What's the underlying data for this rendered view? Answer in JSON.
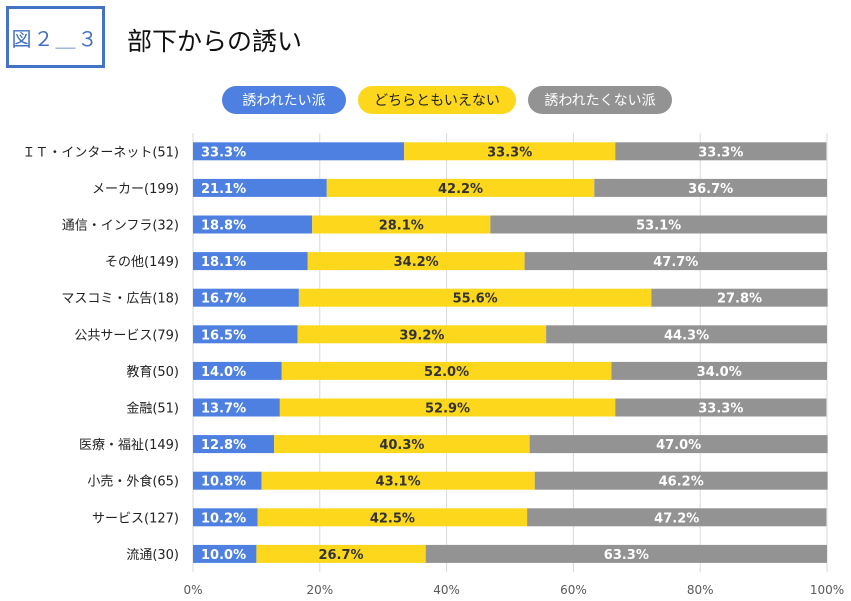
{
  "header": {
    "figure_label": "図２＿３",
    "title": "部下からの誘い"
  },
  "colors": {
    "blue": "#4d80e0",
    "yellow": "#fcd71c",
    "gray": "#939393",
    "figure_border": "#4472c4"
  },
  "chart_data": {
    "type": "bar",
    "orientation": "horizontal",
    "stacked": true,
    "normalized": true,
    "title": "部下からの誘い",
    "legend_position": "top",
    "xlim": [
      0,
      100
    ],
    "grid": true,
    "x_ticks": [
      "0%",
      "20%",
      "40%",
      "60%",
      "80%",
      "100%"
    ],
    "categories": [
      "ＩＴ・インターネット(51)",
      "メーカー(199)",
      "通信・インフラ(32)",
      "その他(149)",
      "マスコミ・広告(18)",
      "公共サービス(79)",
      "教育(50)",
      "金融(51)",
      "医療・福祉(149)",
      "小売・外食(65)",
      "サービス(127)",
      "流通(30)"
    ],
    "series": [
      {
        "name": "誘われたい派",
        "color": "#4d80e0",
        "values": [
          33.3,
          21.1,
          18.8,
          18.1,
          16.7,
          16.5,
          14.0,
          13.7,
          12.8,
          10.8,
          10.2,
          10.0
        ]
      },
      {
        "name": "どちらともいえない",
        "color": "#fcd71c",
        "values": [
          33.3,
          42.2,
          28.1,
          34.2,
          55.6,
          39.2,
          52.0,
          52.9,
          40.3,
          43.1,
          42.5,
          26.7
        ]
      },
      {
        "name": "誘われたくない派",
        "color": "#939393",
        "values": [
          33.3,
          36.7,
          53.1,
          47.7,
          27.8,
          44.3,
          34.0,
          33.3,
          47.0,
          46.2,
          47.2,
          63.3
        ]
      }
    ]
  }
}
